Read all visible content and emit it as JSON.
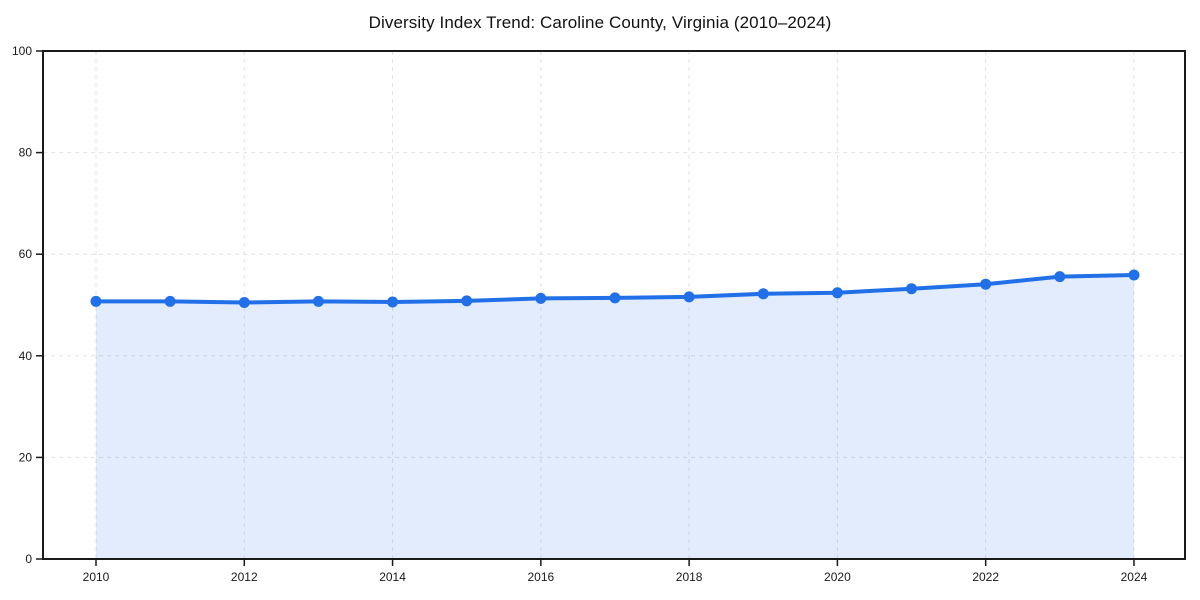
{
  "chart_data": {
    "type": "area",
    "title": "Diversity Index Trend: Caroline County, Virginia (2010–2024)",
    "x": [
      2010,
      2011,
      2012,
      2013,
      2014,
      2015,
      2016,
      2017,
      2018,
      2019,
      2020,
      2021,
      2022,
      2023,
      2024
    ],
    "values": [
      50.7,
      50.7,
      50.5,
      50.7,
      50.6,
      50.8,
      51.3,
      51.4,
      51.6,
      52.2,
      52.4,
      53.2,
      54.1,
      55.6,
      55.9
    ],
    "xticks": [
      2010,
      2012,
      2014,
      2016,
      2018,
      2020,
      2022,
      2024
    ],
    "yticks": [
      0,
      20,
      40,
      60,
      80,
      100
    ],
    "ylim": [
      0,
      100
    ],
    "xlabel": "",
    "ylabel": "",
    "legend": "none",
    "grid": "dashed both axes",
    "marker": "circle",
    "colors": {
      "line": "#2170e8",
      "marker": "#2170e8",
      "fill": "rgba(33, 112, 232, 0.13)",
      "axis": "#1a1a1a",
      "grid": "#e2e2e2",
      "tick_label": "#1a1a1a",
      "title": "#111111",
      "background": "#ffffff"
    }
  }
}
